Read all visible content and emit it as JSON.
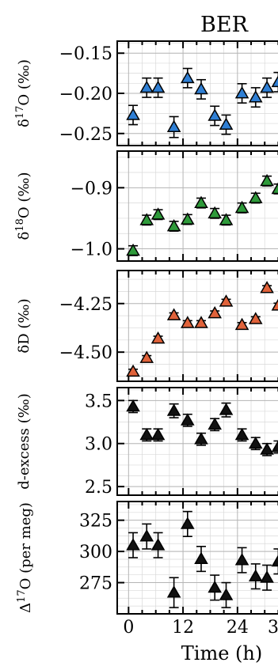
{
  "title": "BER",
  "xlabel": "Time (h)",
  "x_tick_labels": [
    "0",
    "12",
    "24",
    "3"
  ],
  "chart_data": [
    {
      "type": "scatter",
      "ylabel": "δ17O (‰)",
      "ylabel_parts": {
        "pre": "δ",
        "sup": "17",
        "post": "O (‰)"
      },
      "ytick_labels": [
        "−0.15",
        "−0.20",
        "−0.25"
      ],
      "yticks": [
        -0.15,
        -0.2,
        -0.25
      ],
      "ylim": [
        -0.265,
        -0.135
      ],
      "color": "#2f7fd4",
      "x": [
        1,
        4,
        6.5,
        10,
        13,
        16,
        19,
        21.5,
        25,
        28,
        30.5,
        33
      ],
      "values": [
        -0.227,
        -0.193,
        -0.193,
        -0.242,
        -0.181,
        -0.195,
        -0.228,
        -0.239,
        -0.2,
        -0.205,
        -0.193,
        -0.186
      ],
      "err": [
        0.012,
        0.012,
        0.012,
        0.013,
        0.012,
        0.012,
        0.012,
        0.012,
        0.012,
        0.012,
        0.012,
        0.012
      ]
    },
    {
      "type": "scatter",
      "ylabel": "δ18O (‰)",
      "ylabel_parts": {
        "pre": "δ",
        "sup": "18",
        "post": "O (‰)"
      },
      "ytick_labels": [
        "−0.9",
        "−1.0"
      ],
      "yticks": [
        -0.9,
        -1.0
      ],
      "ylim": [
        -1.02,
        -0.84
      ],
      "color": "#2e9a3a",
      "x": [
        1,
        4,
        6.5,
        10,
        13,
        16,
        19,
        21.5,
        25,
        28,
        30.5,
        33
      ],
      "values": [
        -1.003,
        -0.953,
        -0.944,
        -0.963,
        -0.952,
        -0.925,
        -0.942,
        -0.953,
        -0.933,
        -0.917,
        -0.889,
        -0.902
      ],
      "err": [
        0.008,
        0.008,
        0.008,
        0.008,
        0.008,
        0.008,
        0.008,
        0.008,
        0.008,
        0.008,
        0.008,
        0.008
      ]
    },
    {
      "type": "scatter",
      "ylabel": "δD (‰)",
      "ylabel_parts": {
        "pre": "δD (‰)",
        "sup": "",
        "post": ""
      },
      "ytick_labels": [
        "−4.25",
        "−4.50"
      ],
      "yticks": [
        -4.25,
        -4.5
      ],
      "ylim": [
        -4.65,
        -4.08
      ],
      "color": "#e0623a",
      "x": [
        1,
        4,
        6.5,
        10,
        13,
        16,
        19,
        21.5,
        25,
        28,
        30.5,
        33
      ],
      "values": [
        -4.6,
        -4.53,
        -4.43,
        -4.31,
        -4.35,
        -4.35,
        -4.3,
        -4.24,
        -4.36,
        -4.33,
        -4.17,
        -4.26
      ],
      "err": [
        0.012,
        0.012,
        0.012,
        0.012,
        0.012,
        0.012,
        0.012,
        0.012,
        0.012,
        0.012,
        0.012,
        0.012
      ]
    },
    {
      "type": "scatter",
      "ylabel": "d-excess (‰)",
      "ylabel_parts": {
        "pre": "d-excess (‰)",
        "sup": "",
        "post": ""
      },
      "ytick_labels": [
        "3.5",
        "3.0",
        "2.5"
      ],
      "yticks": [
        3.5,
        3.0,
        2.5
      ],
      "ylim": [
        2.4,
        3.65
      ],
      "color": "#111111",
      "x": [
        1,
        4,
        6.5,
        10,
        13,
        16,
        19,
        21.5,
        25,
        28,
        30.5,
        33
      ],
      "values": [
        3.43,
        3.1,
        3.1,
        3.38,
        3.27,
        3.05,
        3.22,
        3.39,
        3.1,
        3.0,
        2.93,
        2.96
      ],
      "err": [
        0.07,
        0.07,
        0.07,
        0.08,
        0.07,
        0.07,
        0.07,
        0.08,
        0.07,
        0.07,
        0.07,
        0.07
      ]
    },
    {
      "type": "scatter",
      "ylabel": "Δ17O (per meg)",
      "ylabel_parts": {
        "pre": "Δ",
        "sup": "17",
        "post": "O (per meg)"
      },
      "ytick_labels": [
        "325",
        "300",
        "275"
      ],
      "yticks": [
        325,
        300,
        275
      ],
      "ylim": [
        250,
        340
      ],
      "color": "#111111",
      "x": [
        1,
        4,
        6.5,
        10,
        13,
        16,
        19,
        21.5,
        25,
        28,
        30.5,
        33
      ],
      "values": [
        305,
        312,
        305,
        267,
        322,
        294,
        271,
        265,
        293,
        280,
        279,
        292
      ],
      "err": [
        10,
        10,
        10,
        12,
        10,
        10,
        10,
        10,
        10,
        10,
        10,
        10
      ]
    }
  ]
}
